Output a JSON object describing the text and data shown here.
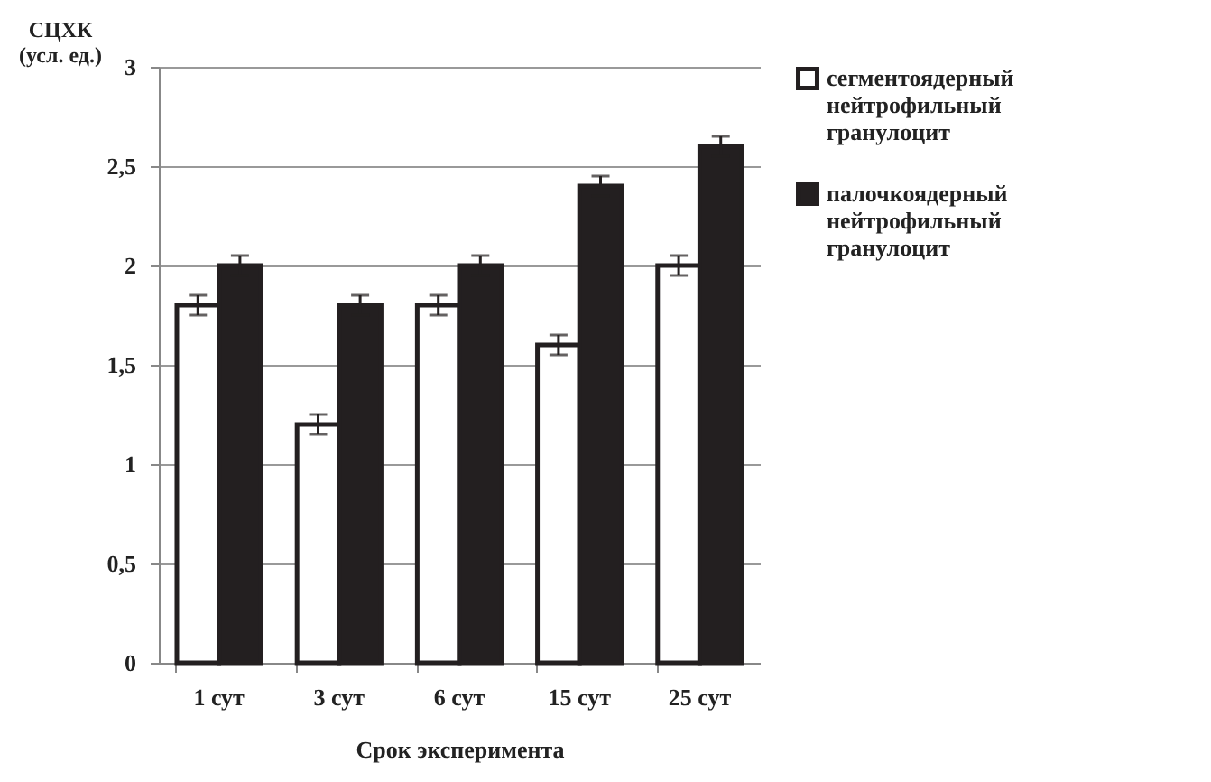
{
  "chart_data": {
    "type": "bar",
    "xlabel": "Срок эксперимента",
    "ylabel": "СЦХК\n(усл. ед.)",
    "categories": [
      "1 сут",
      "3 сут",
      "6 сут",
      "15 сут",
      "25 сут"
    ],
    "series": [
      {
        "name": "сегментоядерный нейтрофильный гранулоцит",
        "color": "#ffffff",
        "values": [
          1.8,
          1.2,
          1.8,
          1.6,
          2.0
        ],
        "errors": [
          0.05,
          0.05,
          0.05,
          0.05,
          0.05
        ]
      },
      {
        "name": "палочкоядерный нейтрофильный гранулоцит",
        "color": "#231f20",
        "values": [
          2.0,
          1.8,
          2.0,
          2.4,
          2.6
        ],
        "errors": [
          0.05,
          0.05,
          0.05,
          0.05,
          0.05
        ]
      }
    ],
    "ylim": [
      0,
      3
    ],
    "yticks": [
      0,
      {
        "value": 0.5,
        "label": "0,5"
      },
      1,
      {
        "value": 1.5,
        "label": "1,5"
      },
      2,
      {
        "value": 2.5,
        "label": "2,5"
      },
      3
    ],
    "grid": "y",
    "legend": "right"
  }
}
